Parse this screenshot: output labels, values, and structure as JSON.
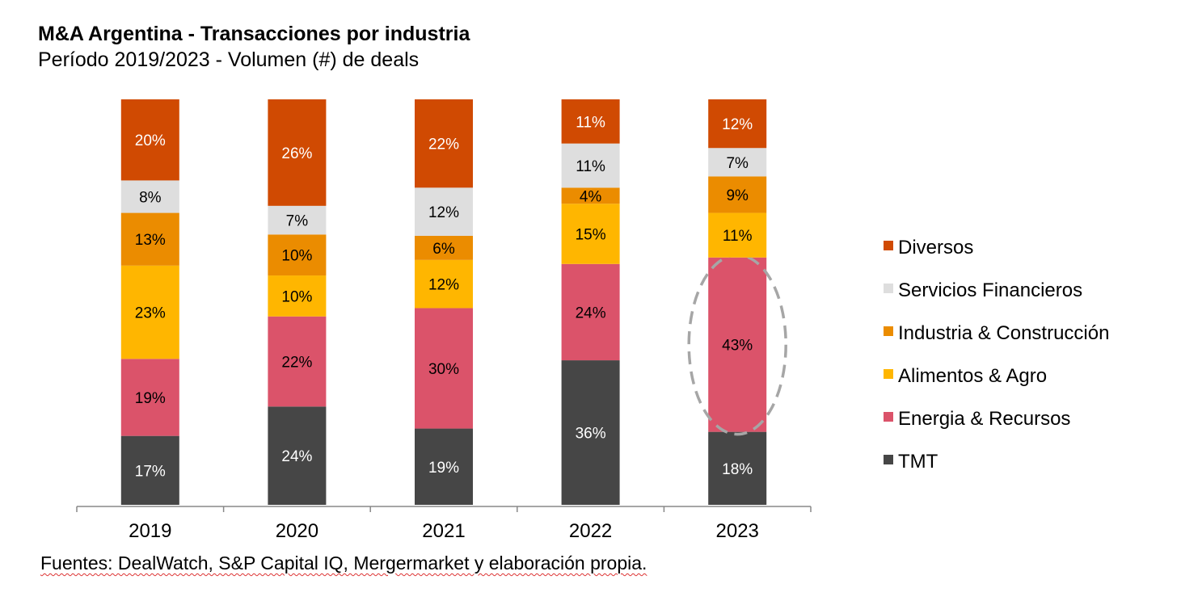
{
  "chart_data": {
    "type": "bar",
    "stacked": true,
    "normalized_percent": true,
    "title": "M&A Argentina - Transacciones por industria",
    "subtitle": "Período 2019/2023 - Volumen (#) de deals",
    "categories": [
      "2019",
      "2020",
      "2021",
      "2022",
      "2023"
    ],
    "series": [
      {
        "name": "TMT",
        "color": "#464646",
        "label_color": "#ffffff",
        "values": [
          17,
          24,
          19,
          36,
          18
        ]
      },
      {
        "name": "Energia & Recursos",
        "color": "#DB536A",
        "label_color": "#000000",
        "values": [
          19,
          22,
          30,
          24,
          43
        ]
      },
      {
        "name": "Alimentos & Agro",
        "color": "#FFB600",
        "label_color": "#000000",
        "values": [
          23,
          10,
          12,
          15,
          11
        ]
      },
      {
        "name": "Industria & Construcción",
        "color": "#EB8C00",
        "label_color": "#000000",
        "values": [
          13,
          10,
          6,
          4,
          9
        ]
      },
      {
        "name": "Servicios Financieros",
        "color": "#DEDEDE",
        "label_color": "#000000",
        "values": [
          8,
          7,
          12,
          11,
          7
        ]
      },
      {
        "name": "Diversos",
        "color": "#D04A02",
        "label_color": "#ffffff",
        "values": [
          20,
          26,
          22,
          11,
          12
        ]
      }
    ],
    "value_suffix": "%",
    "legend_position": "right",
    "legend_order": [
      "Diversos",
      "Servicios Financieros",
      "Industria & Construcción",
      "Alimentos & Agro",
      "Energia & Recursos",
      "TMT"
    ],
    "grid": false,
    "y_axis_visible": false,
    "annotation": {
      "type": "dashed-ellipse",
      "category": "2023",
      "series": "Energia & Recursos",
      "color": "#A6A6A6"
    }
  },
  "footnote": "Fuentes: DealWatch, S&P Capital IQ, Mergermarket y elaboración propia."
}
